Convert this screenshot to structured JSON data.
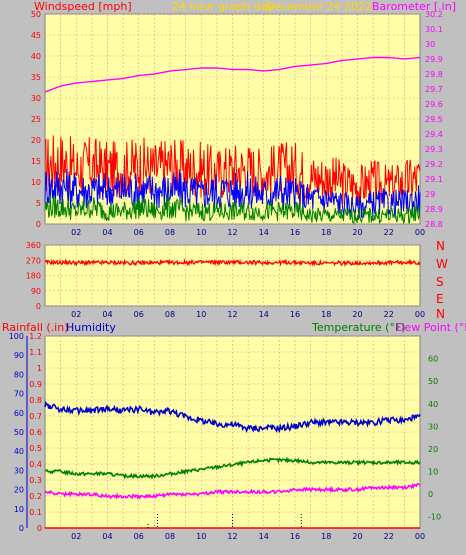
{
  "colors": {
    "page_bg": "#c0c0c0",
    "plot_bg": "#ffffa8",
    "grid": "#ff9090",
    "frame": "#808080",
    "wind": "#ff0000",
    "wind_avg": "#0000ff",
    "wind_low": "#008000",
    "baro": "#ff00ff",
    "direction": "#ff0000",
    "humidity": "#0000c8",
    "temperature": "#008000",
    "dewpoint": "#ff00ff",
    "rain": "#ff0000",
    "title": "#ffd700"
  },
  "header": {
    "wind_label": "Windspeed [mph]",
    "title": "24 hour graph day",
    "date": "December 24 2022",
    "baro_label": "Barometer [.in]"
  },
  "lower_header": {
    "rain_label": "Rainfall (.in)",
    "humidity_label": "Humidity",
    "temp_label": "Temperature (°F)",
    "dew_label": "Dew Point (°F)"
  },
  "compass_labels": [
    "N",
    "W",
    "S",
    "E",
    "N"
  ],
  "chart_data": [
    {
      "type": "line",
      "panel": "wind_baro",
      "x_ticks": [
        "02",
        "04",
        "06",
        "08",
        "10",
        "12",
        "14",
        "16",
        "18",
        "20",
        "22",
        "00"
      ],
      "left_axis": {
        "label": "Windspeed [mph]",
        "ylim": [
          0,
          50
        ],
        "ticks": [
          0,
          5,
          10,
          15,
          20,
          25,
          30,
          35,
          40,
          45,
          50
        ]
      },
      "right_axis": {
        "label": "Barometer [.in]",
        "ylim": [
          28.8,
          30.2
        ],
        "ticks": [
          "28.8",
          "28.9",
          "29",
          "29.1",
          "29.2",
          "29.3",
          "29.4",
          "29.5",
          "29.6",
          "29.7",
          "29.8",
          "29.9",
          "30",
          "30.1",
          "30.2"
        ]
      },
      "x_hours": [
        0,
        1,
        2,
        3,
        4,
        5,
        6,
        7,
        8,
        9,
        10,
        11,
        12,
        13,
        14,
        15,
        16,
        17,
        18,
        19,
        20,
        21,
        22,
        23,
        24
      ],
      "series": [
        {
          "axis": "right",
          "color": "baro",
          "values": [
            29.68,
            29.72,
            29.74,
            29.75,
            29.76,
            29.77,
            29.79,
            29.8,
            29.82,
            29.83,
            29.84,
            29.84,
            29.83,
            29.83,
            29.82,
            29.83,
            29.85,
            29.86,
            29.87,
            29.89,
            29.9,
            29.91,
            29.91,
            29.9,
            29.91
          ]
        },
        {
          "axis": "left",
          "color": "wind",
          "values": [
            14,
            15,
            13,
            14,
            13,
            13,
            14,
            13,
            14,
            13,
            13,
            12,
            13,
            13,
            12,
            13,
            13,
            11,
            11,
            10,
            9,
            10,
            9,
            10,
            11
          ]
        },
        {
          "axis": "left",
          "color": "wind_avg",
          "values": [
            9,
            9,
            8,
            8,
            8,
            8,
            8,
            8,
            8,
            8,
            7,
            8,
            8,
            8,
            7,
            8,
            7,
            6,
            6,
            5,
            4,
            5,
            5,
            5,
            6
          ]
        },
        {
          "axis": "left",
          "color": "wind_low",
          "values": [
            4,
            4,
            3,
            4,
            3,
            3,
            4,
            3,
            4,
            3,
            3,
            3,
            3,
            3,
            3,
            3,
            3,
            2,
            2,
            2,
            2,
            2,
            2,
            2,
            3
          ]
        }
      ]
    },
    {
      "type": "line",
      "panel": "direction",
      "x_ticks": [
        "02",
        "04",
        "06",
        "08",
        "10",
        "12",
        "14",
        "16",
        "18",
        "20",
        "22",
        "00"
      ],
      "left_axis": {
        "ylim": [
          0,
          360
        ],
        "ticks": [
          0,
          90,
          180,
          270,
          360
        ]
      },
      "x_hours": [
        0,
        2,
        4,
        6,
        8,
        10,
        12,
        14,
        16,
        18,
        20,
        22,
        24
      ],
      "series": [
        {
          "color": "direction",
          "values": [
            258,
            255,
            256,
            254,
            256,
            258,
            258,
            256,
            257,
            252,
            254,
            256,
            255
          ]
        }
      ]
    },
    {
      "type": "line",
      "panel": "temp_hum_rain",
      "x_ticks": [
        "02",
        "04",
        "06",
        "08",
        "10",
        "12",
        "14",
        "16",
        "18",
        "20",
        "22",
        "00"
      ],
      "left_axis": {
        "label": "Rainfall (.in) / Humidity",
        "ylim": [
          0,
          100
        ],
        "ticks": [
          0,
          10,
          20,
          30,
          40,
          50,
          60,
          70,
          80,
          90,
          100
        ]
      },
      "rain_axis": {
        "ylim": [
          0,
          1.2
        ],
        "ticks": [
          "0",
          "0.1",
          "0.2",
          "0.3",
          "0.4",
          "0.5",
          "0.6",
          "0.7",
          "0.8",
          "0.9",
          "1",
          "1.1",
          "1.2"
        ]
      },
      "right_axis": {
        "label": "Temperature (°F) / Dew Point (°F)",
        "ylim": [
          -15,
          70
        ],
        "ticks": [
          -10,
          0,
          10,
          20,
          30,
          40,
          50,
          60
        ]
      },
      "x_hours": [
        0,
        1,
        2,
        3,
        4,
        5,
        6,
        7,
        8,
        9,
        10,
        11,
        12,
        13,
        14,
        15,
        16,
        17,
        18,
        19,
        20,
        21,
        22,
        23,
        24
      ],
      "series": [
        {
          "name": "Humidity",
          "axis": "left",
          "color": "humidity",
          "values": [
            64,
            62,
            61,
            61,
            62,
            61,
            62,
            60,
            61,
            58,
            56,
            54,
            54,
            52,
            52,
            52,
            53,
            55,
            55,
            55,
            55,
            55,
            56,
            56,
            58
          ]
        },
        {
          "name": "Temperature (°F)",
          "axis": "right",
          "color": "temperature",
          "values": [
            10,
            10,
            9,
            9,
            9,
            8,
            8,
            8,
            9,
            10,
            11,
            12,
            13,
            14,
            15,
            15,
            15,
            14,
            14,
            14,
            14,
            14,
            14,
            14,
            14
          ]
        },
        {
          "name": "Dew Point (°F)",
          "axis": "right",
          "color": "dewpoint",
          "values": [
            1,
            0,
            0,
            0,
            -1,
            -1,
            -1,
            -1,
            0,
            0,
            0,
            1,
            1,
            1,
            1,
            1,
            2,
            2,
            2,
            2,
            2,
            3,
            3,
            3,
            4
          ]
        },
        {
          "name": "Rainfall (.in)",
          "axis": "rain",
          "color": "rain",
          "values": [
            0,
            0,
            0,
            0,
            0,
            0,
            0,
            0,
            0,
            0,
            0,
            0,
            0,
            0,
            0,
            0,
            0,
            0,
            0,
            0,
            0,
            0,
            0,
            0,
            0
          ]
        }
      ]
    }
  ]
}
